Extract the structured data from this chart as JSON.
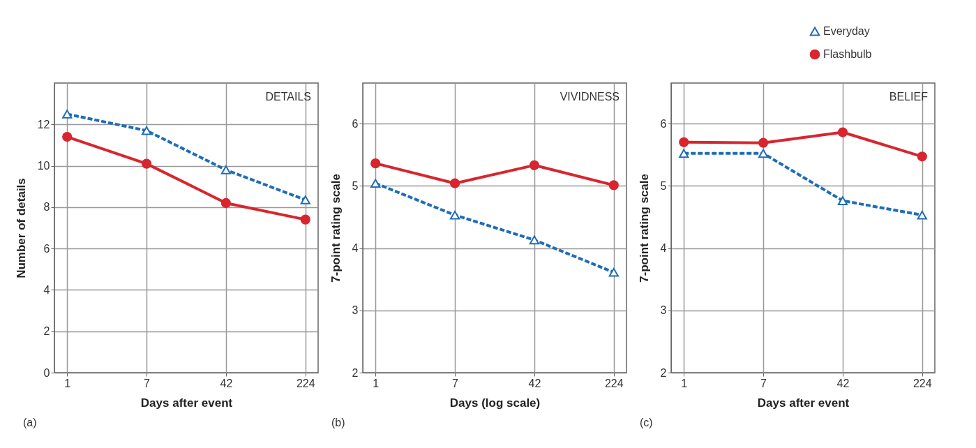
{
  "chart_data": [
    {
      "type": "line",
      "title": "DETAILS",
      "xlabel": "Days after event",
      "ylabel": "Number of details",
      "categories": [
        "1",
        "7",
        "42",
        "224"
      ],
      "ylim": [
        0,
        14
      ],
      "yticks": [
        0,
        2,
        4,
        6,
        8,
        10,
        12
      ],
      "grid": true,
      "annotations": [
        "(a)"
      ],
      "series": [
        {
          "color": "#1f6cb8",
          "marker": "triangle",
          "line_style": "dashed",
          "values": [
            12.5,
            11.7,
            9.8,
            8.35
          ]
        },
        {
          "color": "#d7262e",
          "marker": "circle",
          "line_style": "solid",
          "values": [
            11.4,
            10.1,
            8.2,
            7.4
          ]
        }
      ]
    },
    {
      "type": "line",
      "title": "VIVIDNESS",
      "xlabel": "Days (log scale)",
      "ylabel": "7-point rating scale",
      "categories": [
        "1",
        "7",
        "42",
        "224"
      ],
      "ylim": [
        2,
        6.65
      ],
      "yticks": [
        2,
        3,
        4,
        5,
        6
      ],
      "grid": true,
      "annotations": [
        "(b)"
      ],
      "series": [
        {
          "color": "#1f6cb8",
          "marker": "triangle",
          "line_style": "dashed",
          "values": [
            5.04,
            4.53,
            4.13,
            3.61
          ]
        },
        {
          "color": "#d7262e",
          "marker": "circle",
          "line_style": "solid",
          "values": [
            5.36,
            5.04,
            5.33,
            5.01
          ]
        }
      ]
    },
    {
      "type": "line",
      "title": "BELIEF",
      "xlabel": "Days after event",
      "ylabel": "7-point rating scale",
      "categories": [
        "1",
        "7",
        "42",
        "224"
      ],
      "ylim": [
        2,
        6.65
      ],
      "yticks": [
        2,
        3,
        4,
        5,
        6
      ],
      "grid": true,
      "legend": "top right",
      "annotations": [
        "(c)"
      ],
      "series": [
        {
          "name": "Everyday",
          "color": "#1f6cb8",
          "marker": "triangle",
          "line_style": "dashed",
          "values": [
            5.52,
            5.52,
            4.76,
            4.53
          ]
        },
        {
          "name": "Flashbulb",
          "color": "#d7262e",
          "marker": "circle",
          "line_style": "solid",
          "values": [
            5.7,
            5.69,
            5.86,
            5.47
          ]
        }
      ]
    }
  ]
}
